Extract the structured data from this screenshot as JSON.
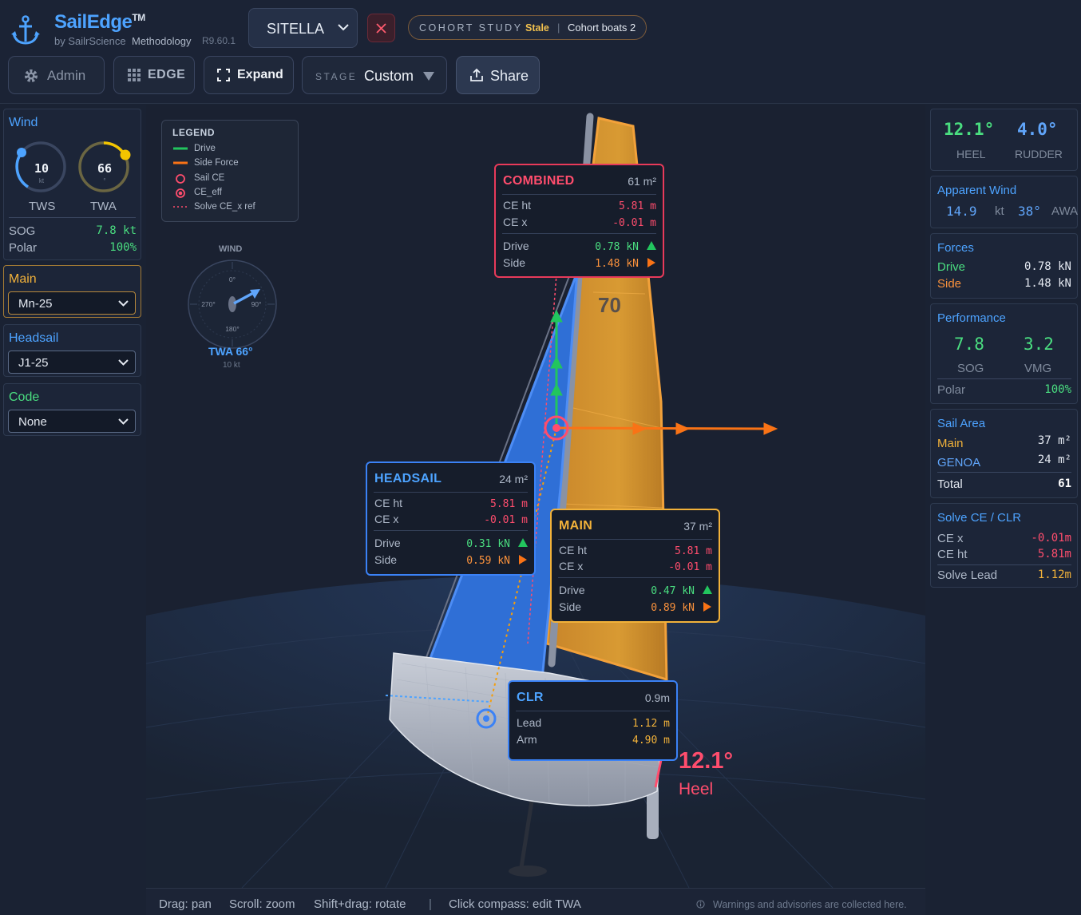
{
  "header": {
    "brand": "SailEdge",
    "brand_tm": "TM",
    "by": "by SailrScience",
    "methodology": "Methodology",
    "version": "R9.60.1",
    "boat": "SITELLA",
    "cohort_key": "COHORT STUDY",
    "cohort_status": "Stale",
    "cohort_sep": "|",
    "cohort_boats": "Cohort boats 2",
    "admin": "Admin",
    "edge": "EDGE",
    "expand": "Expand",
    "stage_key": "STAGE",
    "stage_value": "Custom",
    "share": "Share"
  },
  "left": {
    "wind": {
      "title": "Wind",
      "tws_value": "10",
      "tws_unit": "kt",
      "tws_label": "TWS",
      "twa_value": "66",
      "twa_unit": "°",
      "twa_label": "TWA",
      "sog_label": "SOG",
      "sog_value": "7.8 kt",
      "polar_label": "Polar",
      "polar_value": "100%"
    },
    "main": {
      "title": "Main",
      "value": "Mn-25"
    },
    "headsail": {
      "title": "Headsail",
      "value": "J1-25"
    },
    "code": {
      "title": "Code",
      "value": "None"
    }
  },
  "legend": {
    "title": "LEGEND",
    "items": [
      "Drive",
      "Side Force",
      "Sail CE",
      "CE_eff",
      "Solve CE_x ref"
    ]
  },
  "compass": {
    "title": "WIND",
    "n": "0°",
    "e": "90°",
    "s": "180°",
    "w": "270°",
    "twa": "TWA 66°",
    "speed": "10 kt"
  },
  "sail_number": "70",
  "cards": {
    "combined": {
      "title": "COMBINED",
      "area": "61 m²",
      "ce_ht_label": "CE ht",
      "ce_ht": "5.81 m",
      "ce_x_label": "CE x",
      "ce_x": "-0.01 m",
      "drive_label": "Drive",
      "drive": "0.78 kN",
      "side_label": "Side",
      "side": "1.48 kN"
    },
    "headsail": {
      "title": "HEADSAIL",
      "area": "24 m²",
      "ce_ht_label": "CE ht",
      "ce_ht": "5.81 m",
      "ce_x_label": "CE x",
      "ce_x": "-0.01 m",
      "drive_label": "Drive",
      "drive": "0.31 kN",
      "side_label": "Side",
      "side": "0.59 kN"
    },
    "main": {
      "title": "MAIN",
      "area": "37 m²",
      "ce_ht_label": "CE ht",
      "ce_ht": "5.81 m",
      "ce_x_label": "CE x",
      "ce_x": "-0.01 m",
      "drive_label": "Drive",
      "drive": "0.47 kN",
      "side_label": "Side",
      "side": "0.89 kN"
    },
    "clr": {
      "title": "CLR",
      "area": "0.9m",
      "lead_label": "Lead",
      "lead": "1.12 m",
      "arm_label": "Arm",
      "arm": "4.90 m"
    }
  },
  "heel_display": {
    "value": "12.1°",
    "label": "Heel"
  },
  "status": {
    "drag": "Drag: pan",
    "scroll": "Scroll: zoom",
    "shift": "Shift+drag: rotate",
    "sep": "|",
    "compass": "Click compass: edit TWA",
    "warnings": "Warnings and advisories are collected here."
  },
  "right": {
    "heel_value": "12.1°",
    "heel_label": "HEEL",
    "rudder_value": "4.0°",
    "rudder_label": "RUDDER",
    "apparent": {
      "title": "Apparent Wind",
      "aws": "14.9",
      "aws_unit": "kt",
      "awa": "38°",
      "awa_label": "AWA"
    },
    "forces": {
      "title": "Forces",
      "drive_label": "Drive",
      "drive": "0.78 kN",
      "side_label": "Side",
      "side": "1.48 kN"
    },
    "performance": {
      "title": "Performance",
      "sog": "7.8",
      "sog_label": "SOG",
      "vmg": "3.2",
      "vmg_label": "VMG",
      "polar_label": "Polar",
      "polar": "100%"
    },
    "sail_area": {
      "title": "Sail Area",
      "main_label": "Main",
      "main": "37 m²",
      "genoa_label": "GENOA",
      "genoa": "24 m²",
      "total_label": "Total",
      "total": "61"
    },
    "solve": {
      "title": "Solve CE / CLR",
      "ce_x_label": "CE x",
      "ce_x": "-0.01m",
      "ce_ht_label": "CE ht",
      "ce_ht": "5.81m",
      "lead_label": "Solve Lead",
      "lead": "1.12m"
    }
  },
  "colors": {
    "accent_blue": "#4da3ff",
    "drive_green": "#4ade80",
    "side_orange": "#fb923c",
    "main_amber": "#f2b23a",
    "combined_red": "#ff4d6d"
  },
  "icons": [
    "anchor-icon",
    "chevron-down-icon",
    "close-icon",
    "gear-icon",
    "grid-icon",
    "expand-icon",
    "caret-down-icon",
    "share-icon",
    "info-icon"
  ]
}
